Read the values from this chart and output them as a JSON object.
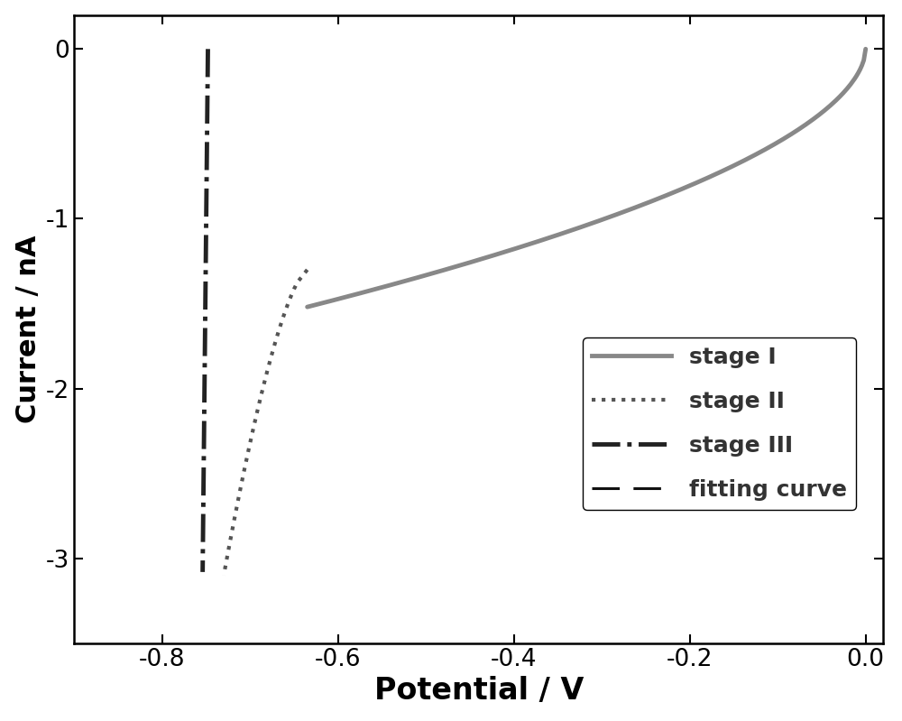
{
  "title": "",
  "xlabel": "Potential / V",
  "ylabel": "Current / nA",
  "xlim": [
    -0.9,
    0.02
  ],
  "ylim": [
    -3.5,
    0.2
  ],
  "xticks": [
    -0.8,
    -0.6,
    -0.4,
    -0.2,
    0.0
  ],
  "yticks": [
    0,
    -1,
    -2,
    -3
  ],
  "background_color": "#ffffff",
  "stage1_color": "#888888",
  "stage2_color": "#555555",
  "stage3_color": "#222222",
  "fitting_color": "#111111",
  "xlabel_fontsize": 24,
  "ylabel_fontsize": 22,
  "tick_fontsize": 19,
  "legend_fontsize": 18
}
